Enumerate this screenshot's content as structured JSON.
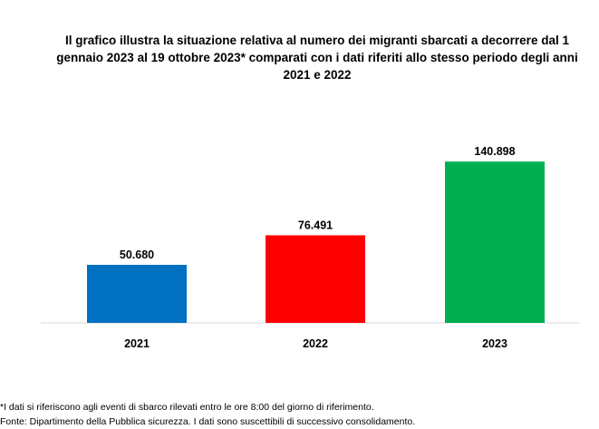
{
  "title_lines": [
    "Il grafico illustra la situazione relativa al numero dei migranti sbarcati a decorrere dal 1",
    "gennaio 2023 al 19 ottobre 2023* comparati con i dati riferiti allo stesso periodo degli anni",
    "2021 e 2022"
  ],
  "notes": [
    "*I dati si riferiscono agli eventi di sbarco rilevati entro le ore 8:00 del giorno di riferimento.",
    "Fonte: Dipartimento della Pubblica sicurezza. I dati sono suscettibili di successivo consolidamento."
  ],
  "chart_data": {
    "type": "bar",
    "title": "Il grafico illustra la situazione relativa al numero dei migranti sbarcati a decorrere dal 1 gennaio 2023 al 19 ottobre 2023* comparati con i dati riferiti allo stesso periodo degli anni 2021 e 2022",
    "categories": [
      "2021",
      "2022",
      "2023"
    ],
    "values": [
      50680,
      76491,
      140898
    ],
    "value_labels": [
      "50.680",
      "76.491",
      "140.898"
    ],
    "colors": [
      "#0070C0",
      "#FF0000",
      "#00B050"
    ],
    "xlabel": "",
    "ylabel": "",
    "ylim": [
      0,
      160000
    ],
    "grid": false,
    "legend": "none"
  }
}
